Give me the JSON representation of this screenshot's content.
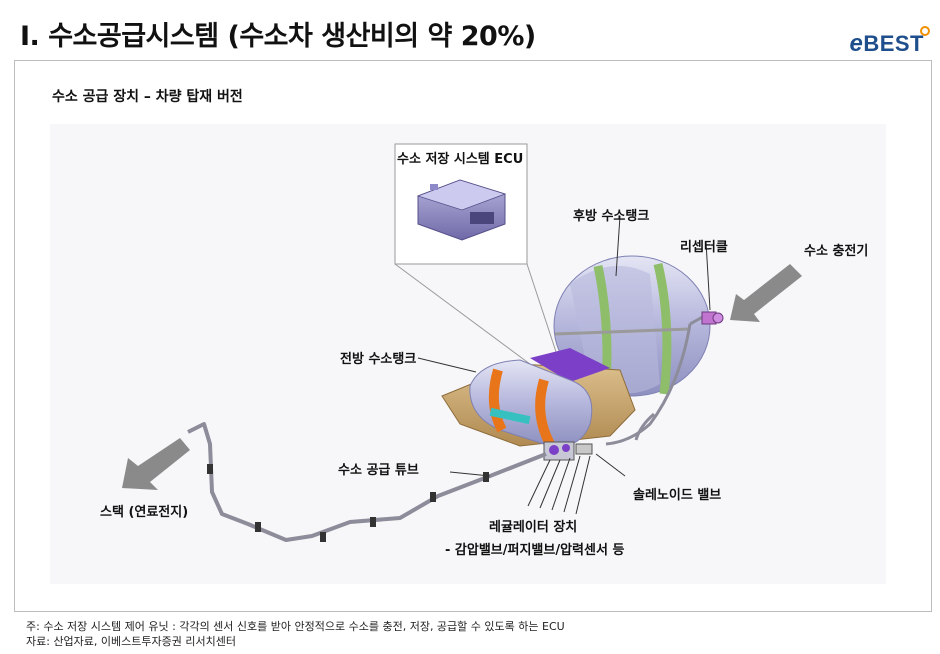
{
  "header": {
    "title": "I. 수소공급시스템 (수소차 생산비의 약 20%)",
    "logo_text": "BEST",
    "logo_prefix": "e"
  },
  "panel": {
    "subtitle": "수소 공급 장치 – 차량 탑재 버전"
  },
  "labels": {
    "ecu": "수소 저장 시스템 ECU",
    "rear_tank": "후방 수소탱크",
    "receptacle": "리셉터클",
    "charger": "수소 충전기",
    "front_tank": "전방 수소탱크",
    "supply_tube": "수소 공급 튜브",
    "solenoid": "솔레노이드 밸브",
    "stack": "스택 (연료전지)",
    "regulator": "레귤레이터 장치",
    "regulator_detail": "- 감압밸브/퍼지밸브/압력센서  등"
  },
  "footer": {
    "note": "주: 수소 저장 시스템 제어 유닛 : 각각의 센서 신호를 받아 안정적으로 수소를 충전, 저장, 공급할 수 있도록 하는 ECU",
    "source": "자료: 산업자료, 이베스트투자증권 리서치센터"
  },
  "colors": {
    "brand": "#1f4e8c",
    "logo_accent": "#f29100",
    "tank": "#b7b8dc",
    "band": "#e8751a",
    "band_green": "#8fbe6a",
    "frame": "#c9a36a",
    "arrow": "#8a8a8a"
  }
}
